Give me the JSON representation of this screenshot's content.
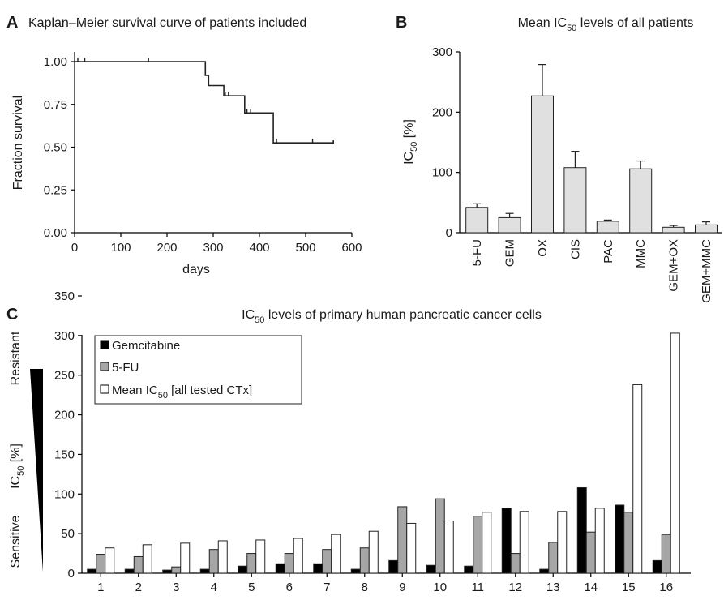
{
  "panels": {
    "a": {
      "letter": "A",
      "chart_data": {
        "type": "line",
        "title": "Kaplan–Meier survival curve of patients included",
        "xlabel": "days",
        "ylabel": "Fraction survival",
        "xlim": [
          0,
          600
        ],
        "ylim": [
          0,
          1
        ],
        "xticks": [
          "0",
          "100",
          "200",
          "300",
          "400",
          "500",
          "600"
        ],
        "yticks": [
          "0.00",
          "0.25",
          "0.50",
          "0.75",
          "1.00"
        ],
        "steps": [
          [
            0,
            1.0
          ],
          [
            283,
            1.0
          ],
          [
            283,
            0.92
          ],
          [
            290,
            0.92
          ],
          [
            290,
            0.86
          ],
          [
            323,
            0.86
          ],
          [
            323,
            0.8
          ],
          [
            368,
            0.8
          ],
          [
            368,
            0.7
          ],
          [
            430,
            0.7
          ],
          [
            430,
            0.525
          ],
          [
            560,
            0.525
          ],
          [
            560,
            0.54
          ]
        ],
        "censored": [
          [
            7,
            1.0
          ],
          [
            22,
            1.0
          ],
          [
            160,
            1.0
          ],
          [
            290,
            0.86
          ],
          [
            326,
            0.8
          ],
          [
            333,
            0.8
          ],
          [
            373,
            0.7
          ],
          [
            381,
            0.7
          ],
          [
            437,
            0.525
          ],
          [
            515,
            0.525
          ]
        ]
      }
    },
    "b": {
      "letter": "B",
      "title_main": "Mean IC",
      "title_sub": "50",
      "title_rest": " levels of all patients",
      "ylabel_main": "IC",
      "ylabel_sub": "50",
      "ylabel_rest": " [%]",
      "chart_data": {
        "type": "bar",
        "categories": [
          "5-FU",
          "GEM",
          "OX",
          "CIS",
          "PAC",
          "MMC",
          "GEM+OX",
          "GEM+MMC"
        ],
        "values": [
          42,
          25,
          227,
          108,
          19,
          106,
          9,
          13
        ],
        "errors": [
          6,
          7,
          52,
          27,
          2,
          13,
          3,
          5
        ],
        "ylim": [
          0,
          300
        ],
        "yticks": [
          "0",
          "100",
          "200",
          "300"
        ]
      }
    },
    "c": {
      "letter": "C",
      "title_main": "IC",
      "title_sub": "50",
      "title_rest": " levels of primary human pancreatic cancer cells",
      "ylabel_main": "IC",
      "ylabel_sub": "50",
      "ylabel_rest": " [%]",
      "resistant_label": "Resistant",
      "sensitive_label": "Sensitive",
      "legend": {
        "gem": "Gemcitabine",
        "fu": "5-FU",
        "mean_main": "Mean IC",
        "mean_sub": "50",
        "mean_rest": " [all tested CTx]"
      },
      "colors": {
        "gemcitabine": "#000000",
        "fu": "#a6a6a6",
        "mean": "#ffffff"
      },
      "chart_data": {
        "type": "bar",
        "categories": [
          "1",
          "2",
          "3",
          "4",
          "5",
          "6",
          "7",
          "8",
          "9",
          "10",
          "11",
          "12",
          "13",
          "14",
          "15",
          "16"
        ],
        "series": [
          {
            "name": "Gemcitabine",
            "values": [
              5,
              5,
              4,
              5,
              9,
              12,
              12,
              5,
              16,
              10,
              9,
              82,
              5,
              108,
              86,
              16
            ]
          },
          {
            "name": "5-FU",
            "values": [
              24,
              21,
              8,
              30,
              25,
              25,
              30,
              32,
              84,
              94,
              72,
              25,
              39,
              52,
              77,
              49
            ]
          },
          {
            "name": "Mean IC50 [all tested CTx]",
            "values": [
              32,
              36,
              38,
              41,
              42,
              44,
              49,
              53,
              63,
              66,
              77,
              78,
              78,
              82,
              238,
              303
            ]
          }
        ],
        "ylim": [
          0,
          350
        ],
        "yticks": [
          "0",
          "50",
          "100",
          "150",
          "200",
          "250",
          "300",
          "350"
        ]
      }
    }
  }
}
